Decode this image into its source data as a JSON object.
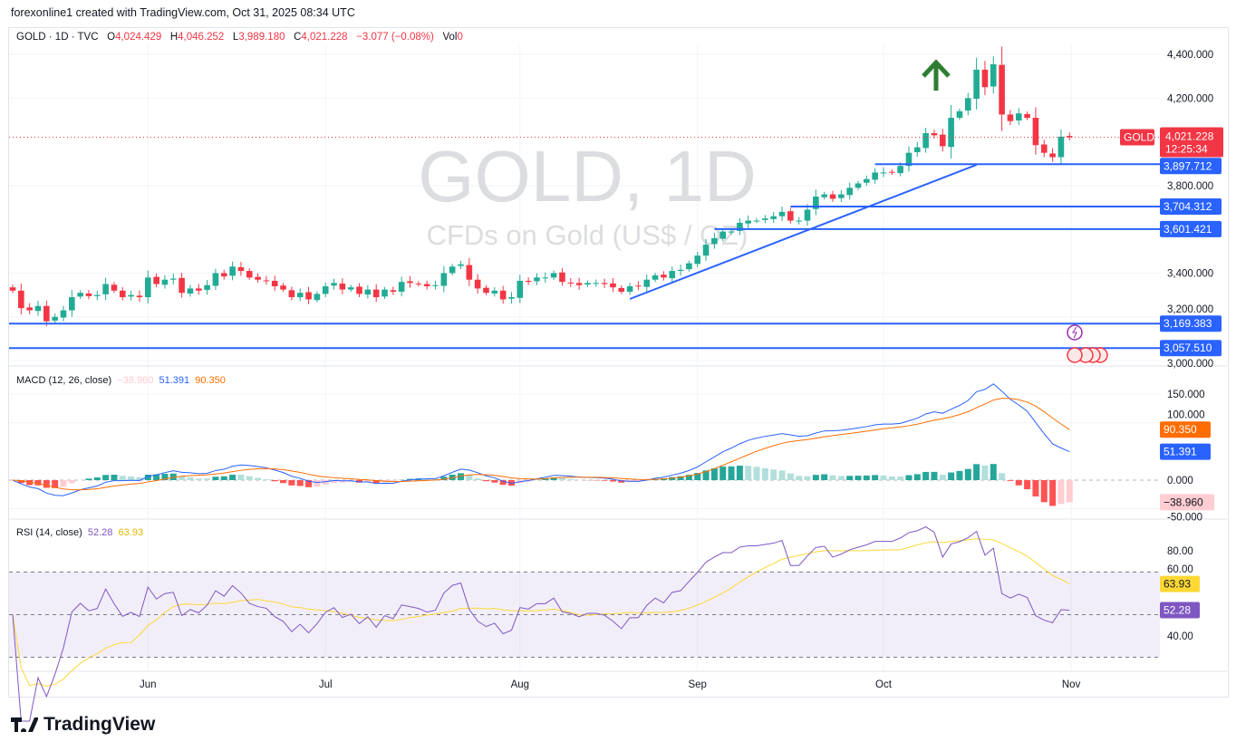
{
  "credit": "forexonline1 created with TradingView.com, Oct 31, 2025 08:34 UTC",
  "legend": {
    "symbol": "GOLD · 1D · TVC",
    "o_label": "O",
    "o": "4,024.429",
    "h_label": "H",
    "h": "4,046.252",
    "l_label": "L",
    "l": "3,989.180",
    "c_label": "C",
    "c": "4,021.228",
    "change": "−3.077 (−0.08%)",
    "vol_label": "Vol",
    "vol": "0"
  },
  "watermark": {
    "title": "GOLD, 1D",
    "subtitle": "CFDs on Gold (US$ / OZ)"
  },
  "macd_legend": {
    "name": "MACD (12, 26, close)",
    "hist": "−38.960",
    "macd": "51.391",
    "signal": "90.350"
  },
  "rsi_legend": {
    "name": "RSI (14, close)",
    "rsi": "52.28",
    "ma": "63.93"
  },
  "logo": "TradingView",
  "colors": {
    "up": "#22ab94",
    "down": "#f23645",
    "line": "#2962ff",
    "macd": "#2962ff",
    "signal": "#ff6d00",
    "rsi": "#7e57c2",
    "rsi_ma": "#fdd835",
    "arrow": "#2e7d32"
  },
  "chart_data": [
    {
      "type": "candlestick",
      "title": "GOLD · 1D · TVC",
      "first_date": "2025-05-09",
      "last_date": "2025-10-31",
      "closes": [
        3320,
        3240,
        3230,
        3250,
        3180,
        3200,
        3230,
        3290,
        3310,
        3295,
        3300,
        3350,
        3320,
        3290,
        3300,
        3290,
        3380,
        3350,
        3370,
        3375,
        3310,
        3330,
        3320,
        3345,
        3400,
        3385,
        3430,
        3410,
        3380,
        3370,
        3365,
        3340,
        3325,
        3290,
        3310,
        3280,
        3305,
        3340,
        3355,
        3325,
        3335,
        3305,
        3325,
        3290,
        3325,
        3315,
        3360,
        3355,
        3350,
        3340,
        3345,
        3400,
        3430,
        3440,
        3370,
        3330,
        3310,
        3320,
        3280,
        3290,
        3365,
        3360,
        3380,
        3380,
        3400,
        3360,
        3355,
        3345,
        3355,
        3355,
        3350,
        3335,
        3315,
        3340,
        3340,
        3370,
        3390,
        3380,
        3410,
        3415,
        3445,
        3480,
        3530,
        3560,
        3590,
        3590,
        3630,
        3640,
        3640,
        3650,
        3660,
        3680,
        3640,
        3640,
        3690,
        3750,
        3760,
        3740,
        3760,
        3790,
        3810,
        3830,
        3860,
        3860,
        3860,
        3890,
        3950,
        3975,
        4040,
        4030,
        3980,
        4110,
        4140,
        4200,
        4330,
        4250,
        4355,
        4125,
        4095,
        4130,
        4110,
        3985,
        3950,
        3930,
        4024,
        4021
      ],
      "x_ticks": [
        {
          "label": "Jun",
          "index": 16
        },
        {
          "label": "Jul",
          "index": 37
        },
        {
          "label": "Aug",
          "index": 60
        },
        {
          "label": "Sep",
          "index": 81
        },
        {
          "label": "Oct",
          "index": 103
        },
        {
          "label": "Nov",
          "index": 125.2
        }
      ],
      "y_ticks": [
        "4,400.000",
        "4,200.000",
        "3,800.000",
        "3,400.000",
        "3,200.000",
        "3,000.000"
      ],
      "y_tick_values": [
        4400,
        4200,
        3800,
        3400,
        3200,
        3000
      ],
      "ylim": [
        2975,
        4460
      ],
      "last_price": {
        "symbol": "GOLD",
        "value": "4,021.228",
        "countdown": "12:25:34",
        "price": 4021.228
      },
      "horizontal_lines": [
        {
          "label": "3,897.712",
          "price": 3897.712,
          "from_index": 102
        },
        {
          "label": "3,704.312",
          "price": 3704.312,
          "from_index": 92
        },
        {
          "label": "3,601.421",
          "price": 3601.421,
          "from_index": 83
        },
        {
          "label": "3,169.383",
          "price": 3169.383,
          "from_index": -1
        },
        {
          "label": "3,057.510",
          "price": 3057.51,
          "from_index": -1
        }
      ],
      "trendline": {
        "from": {
          "index": 73,
          "price": 3282
        },
        "to": {
          "index": 114,
          "price": 3895
        }
      },
      "annotations": [
        "up-arrow",
        "lightning-event-icon",
        "us-flag-event-icons"
      ]
    },
    {
      "type": "macd",
      "ylim": [
        -55,
        170
      ],
      "y_ticks": [
        "150.000",
        "100.000",
        "0.000",
        "-50.000"
      ],
      "y_tick_values": [
        150,
        100,
        0,
        -50
      ],
      "last": {
        "hist": "−38.960",
        "macd": "51.391",
        "signal": "90.350"
      }
    },
    {
      "type": "rsi",
      "ylim": [
        22,
        98
      ],
      "y_ticks": [
        "80.00",
        "60.00",
        "40.00"
      ],
      "y_tick_values": [
        80,
        60,
        40
      ],
      "bands": [
        70,
        50,
        30
      ],
      "last": {
        "rsi": "52.28",
        "ma": "63.93"
      }
    }
  ]
}
